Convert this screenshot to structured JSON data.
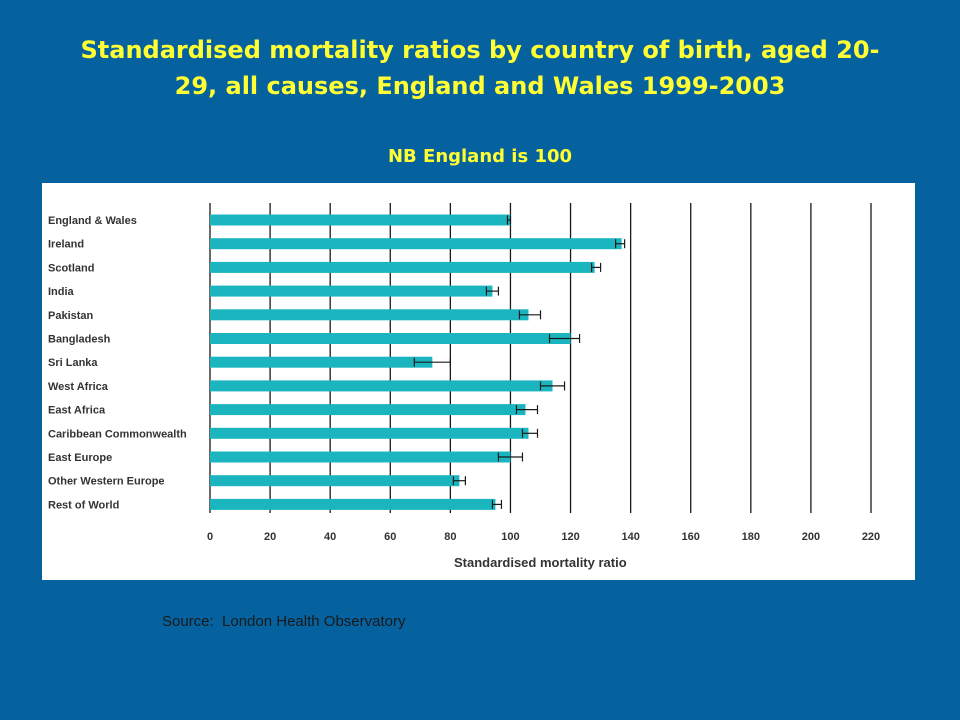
{
  "slide": {
    "title": "Standardised mortality ratios by country of birth, aged 20-29, all causes, England and Wales 1999-2003",
    "note": "NB England is 100",
    "source": "Source:  London Health Observatory"
  },
  "colors": {
    "background": "#05629f",
    "title_text": "#ffff33",
    "bar": "#1bb5c0",
    "gridline": "#1a1a1a",
    "error_bar": "#1a1a1a"
  },
  "chart_data": {
    "type": "bar",
    "orientation": "horizontal",
    "xlabel": "Standardised mortality ratio",
    "xlim": [
      0,
      220
    ],
    "xticks": [
      "0",
      "20",
      "40",
      "60",
      "80",
      "100",
      "120",
      "140",
      "160",
      "180",
      "200",
      "220"
    ],
    "grid": "vertical",
    "categories": [
      "England & Wales",
      "Ireland",
      "Scotland",
      "India",
      "Pakistan",
      "Bangladesh",
      "Sri Lanka",
      "West Africa",
      "East Africa",
      "Caribbean Commonwealth",
      "East Europe",
      "Other Western Europe",
      "Rest of World"
    ],
    "values": [
      100,
      137,
      128,
      94,
      106,
      120,
      74,
      114,
      105,
      106,
      100,
      83,
      95
    ],
    "ci_low": [
      99,
      135,
      127,
      92,
      103,
      113,
      68,
      110,
      102,
      104,
      96,
      81,
      94
    ],
    "ci_high": [
      100,
      138,
      130,
      96,
      110,
      123,
      80,
      118,
      109,
      109,
      104,
      85,
      97
    ]
  }
}
